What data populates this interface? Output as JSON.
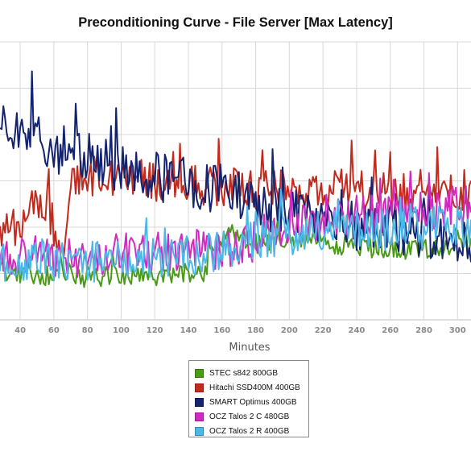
{
  "chart_data": {
    "type": "line",
    "title": "Preconditioning Curve - File Server [Max Latency]",
    "xlabel": "Minutes",
    "ylabel": "",
    "x_ticks": [
      40,
      60,
      80,
      100,
      120,
      140,
      160,
      180,
      200,
      220,
      240,
      260,
      280,
      300
    ],
    "xlim": [
      28,
      308
    ],
    "ylim": [
      0,
      6
    ],
    "grid": true,
    "legend_position": "bottom-center",
    "series": [
      {
        "name": "STEC s842 800GB",
        "color": "#4a9a16",
        "points": [
          [
            28,
            1.05
          ],
          [
            40,
            1.0
          ],
          [
            60,
            0.95
          ],
          [
            80,
            0.9
          ],
          [
            100,
            0.95
          ],
          [
            120,
            0.95
          ],
          [
            140,
            1.0
          ],
          [
            150,
            1.05
          ],
          [
            153,
            1.4
          ],
          [
            156,
            1.55
          ],
          [
            160,
            1.7
          ],
          [
            163,
            1.95
          ],
          [
            170,
            1.85
          ],
          [
            175,
            1.7
          ],
          [
            180,
            1.65
          ],
          [
            200,
            1.7
          ],
          [
            220,
            1.65
          ],
          [
            240,
            1.6
          ],
          [
            260,
            1.5
          ],
          [
            280,
            1.55
          ],
          [
            300,
            1.55
          ],
          [
            308,
            1.6
          ]
        ],
        "noise": 0.22
      },
      {
        "name": "Hitachi SSD400M 400GB",
        "color": "#c12a1d",
        "points": [
          [
            28,
            1.9
          ],
          [
            40,
            2.1
          ],
          [
            48,
            2.4
          ],
          [
            56,
            2.5
          ],
          [
            62,
            1.7
          ],
          [
            66,
            1.8
          ],
          [
            70,
            2.8
          ],
          [
            75,
            3.1
          ],
          [
            100,
            3.1
          ],
          [
            120,
            3.0
          ],
          [
            140,
            2.9
          ],
          [
            160,
            2.9
          ],
          [
            180,
            2.8
          ],
          [
            200,
            2.85
          ],
          [
            220,
            2.8
          ],
          [
            240,
            2.8
          ],
          [
            260,
            2.75
          ],
          [
            280,
            2.8
          ],
          [
            300,
            2.85
          ],
          [
            308,
            2.75
          ]
        ],
        "noise": 0.45
      },
      {
        "name": "SMART Optimus 400GB",
        "color": "#14236f",
        "points": [
          [
            28,
            4.1
          ],
          [
            40,
            4.0
          ],
          [
            48,
            4.3
          ],
          [
            55,
            3.8
          ],
          [
            70,
            3.6
          ],
          [
            100,
            3.3
          ],
          [
            120,
            3.1
          ],
          [
            140,
            3.0
          ],
          [
            160,
            2.8
          ],
          [
            180,
            2.5
          ],
          [
            200,
            2.3
          ],
          [
            220,
            2.1
          ],
          [
            240,
            2.0
          ],
          [
            260,
            1.95
          ],
          [
            280,
            1.85
          ],
          [
            300,
            1.7
          ],
          [
            308,
            1.6
          ]
        ],
        "noise": 0.55
      },
      {
        "name": "OCZ Talos 2 C 480GB",
        "color": "#d22ac0",
        "points": [
          [
            28,
            1.35
          ],
          [
            40,
            1.3
          ],
          [
            60,
            1.3
          ],
          [
            80,
            1.4
          ],
          [
            100,
            1.45
          ],
          [
            120,
            1.5
          ],
          [
            140,
            1.5
          ],
          [
            160,
            1.5
          ],
          [
            175,
            1.6
          ],
          [
            185,
            1.9
          ],
          [
            200,
            2.0
          ],
          [
            220,
            2.15
          ],
          [
            240,
            2.25
          ],
          [
            260,
            2.35
          ],
          [
            280,
            2.4
          ],
          [
            300,
            2.45
          ],
          [
            308,
            2.5
          ]
        ],
        "noise": 0.45
      },
      {
        "name": "OCZ Talos 2 R 400GB",
        "color": "#4bb8e8",
        "points": [
          [
            28,
            1.2
          ],
          [
            40,
            1.2
          ],
          [
            60,
            1.25
          ],
          [
            80,
            1.25
          ],
          [
            100,
            1.3
          ],
          [
            120,
            1.35
          ],
          [
            140,
            1.4
          ],
          [
            160,
            1.45
          ],
          [
            170,
            1.5
          ],
          [
            175,
            1.6
          ],
          [
            180,
            1.75
          ],
          [
            200,
            1.8
          ],
          [
            220,
            1.9
          ],
          [
            240,
            1.95
          ],
          [
            260,
            1.95
          ],
          [
            280,
            2.0
          ],
          [
            300,
            2.0
          ],
          [
            308,
            2.05
          ]
        ],
        "noise": 0.45
      }
    ]
  }
}
